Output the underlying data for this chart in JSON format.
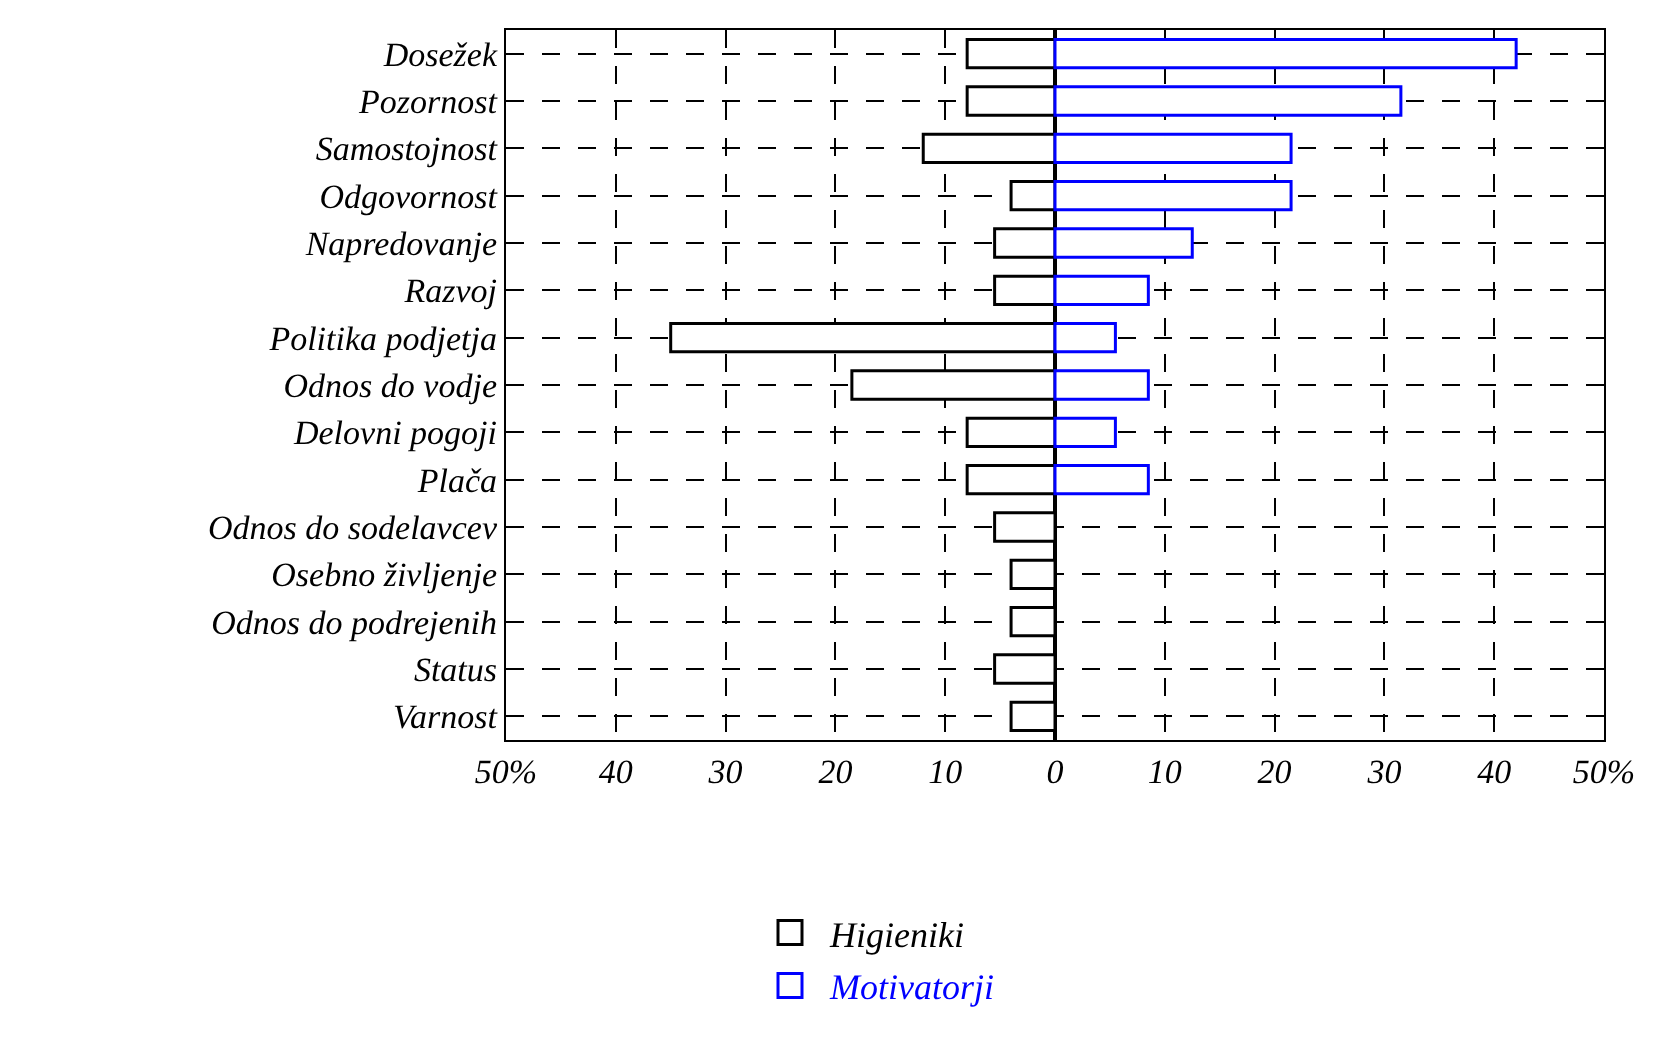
{
  "chart_data": {
    "type": "bar",
    "orientation": "horizontal",
    "categories": [
      "Dosežek",
      "Pozornost",
      "Samostojnost",
      "Odgovornost",
      "Napredovanje",
      "Razvoj",
      "Politika podjetja",
      "Odnos do vodje",
      "Delovni pogoji",
      "Plača",
      "Odnos do sodelavcev",
      "Osebno življenje",
      "Odnos do podrejenih",
      "Status",
      "Varnost"
    ],
    "series": [
      {
        "name": "Higieniki",
        "color": "#000000",
        "values": [
          -8,
          -8,
          -12,
          -4,
          -5.5,
          -5.5,
          -35,
          -18.5,
          -8,
          -8,
          -5.5,
          -4,
          -4,
          -5.5,
          -4
        ]
      },
      {
        "name": "Motivatorji",
        "color": "#0000ff",
        "values": [
          42,
          31.5,
          21.5,
          21.5,
          12.5,
          8.5,
          5.5,
          8.5,
          5.5,
          8.5,
          null,
          null,
          null,
          null,
          null
        ]
      }
    ],
    "xlim": [
      -50,
      50
    ],
    "xticks": [
      {
        "value": -50,
        "label": "50%"
      },
      {
        "value": -40,
        "label": "40"
      },
      {
        "value": -30,
        "label": "30"
      },
      {
        "value": -20,
        "label": "20"
      },
      {
        "value": -10,
        "label": "10"
      },
      0,
      10,
      20,
      30,
      40,
      {
        "value": 50,
        "label": "50%"
      }
    ],
    "grid": true,
    "legend": "bottom",
    "line_style": "dashed",
    "stacked": true
  }
}
